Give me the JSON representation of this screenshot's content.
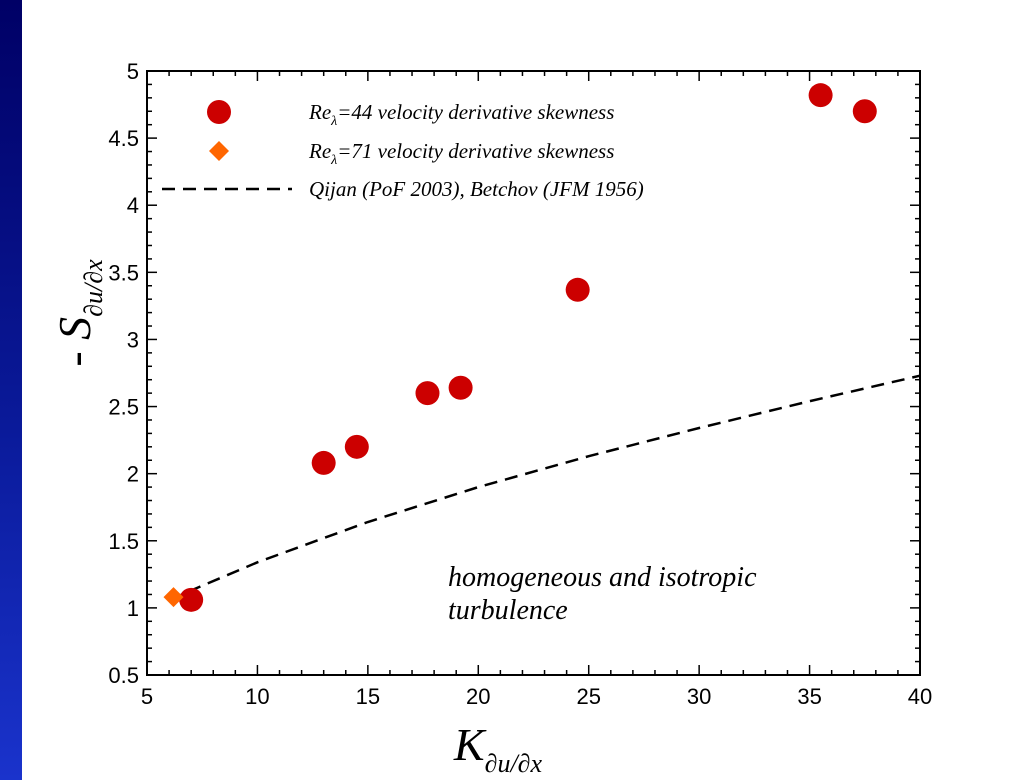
{
  "chart_data": {
    "type": "scatter",
    "xlim": [
      5,
      40
    ],
    "ylim": [
      0.5,
      5
    ],
    "x_ticks": [
      "5",
      "10",
      "15",
      "20",
      "25",
      "30",
      "35",
      "40"
    ],
    "y_ticks": [
      "0.5",
      "1",
      "1.5",
      "2",
      "2.5",
      "3",
      "3.5",
      "4",
      "4.5",
      "5"
    ],
    "xlabel": {
      "main": "K",
      "sub": "∂u/∂x"
    },
    "ylabel": {
      "main": "- S",
      "sub": "∂u/∂x"
    },
    "grid": false,
    "legend_position": "top",
    "series": [
      {
        "name": "Re_λ=44 velocity derivative skewness",
        "legend": {
          "pre": "Re",
          "sub": "λ",
          "post": "=44 velocity derivative skewness"
        },
        "marker": "circle",
        "color": "#cc0000",
        "points": [
          {
            "x": 7.0,
            "y": 1.06
          },
          {
            "x": 13.0,
            "y": 2.08
          },
          {
            "x": 14.5,
            "y": 2.2
          },
          {
            "x": 17.7,
            "y": 2.6
          },
          {
            "x": 19.2,
            "y": 2.64
          },
          {
            "x": 24.5,
            "y": 3.37
          },
          {
            "x": 35.5,
            "y": 4.82
          },
          {
            "x": 37.5,
            "y": 4.7
          }
        ]
      },
      {
        "name": "Re_λ=71 velocity derivative skewness",
        "legend": {
          "pre": "Re",
          "sub": "λ",
          "post": "=71 velocity derivative skewness"
        },
        "marker": "diamond",
        "color": "#ff6600",
        "points": [
          {
            "x": 6.2,
            "y": 1.08
          }
        ]
      },
      {
        "name": "Qijan (PoF 2003), Betchov (JFM 1956)",
        "legend": {
          "pre": "Qijan (PoF 2003), Betchov (JFM 1956)",
          "sub": "",
          "post": ""
        },
        "marker": "dashed-line",
        "color": "#000000",
        "x": [
          6.0,
          10,
          15,
          20,
          25,
          30,
          35,
          40
        ],
        "y": [
          1.06,
          1.34,
          1.64,
          1.9,
          2.13,
          2.34,
          2.54,
          2.73
        ]
      }
    ],
    "annotations": [
      "homogeneous and isotropic",
      "turbulence"
    ]
  }
}
